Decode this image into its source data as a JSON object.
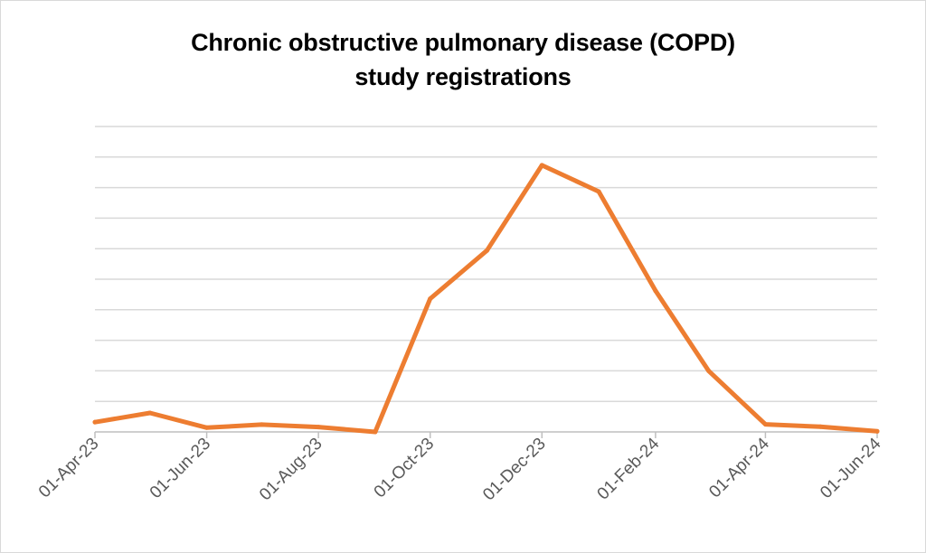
{
  "chart_data": {
    "type": "line",
    "title_lines": [
      "Chronic obstructive pulmonary disease (COPD)",
      "study registrations"
    ],
    "xlabel": "",
    "ylabel": "",
    "x_tick_labels": [
      "01-Apr-23",
      "01-Jun-23",
      "01-Aug-23",
      "01-Oct-23",
      "01-Dec-23",
      "01-Feb-24",
      "01-Apr-24",
      "01-Jun-24"
    ],
    "x": [
      "2023-04-01",
      "2023-05-01",
      "2023-06-01",
      "2023-07-01",
      "2023-08-01",
      "2023-09-01",
      "2023-10-01",
      "2023-11-01",
      "2023-12-01",
      "2024-01-01",
      "2024-02-01",
      "2024-03-01",
      "2024-04-01",
      "2024-05-01",
      "2024-06-01"
    ],
    "series": [
      {
        "values": [
          0.32,
          0.62,
          0.14,
          0.24,
          0.16,
          0.0,
          4.36,
          5.94,
          8.73,
          7.87,
          4.62,
          2.0,
          0.25,
          0.17,
          0.02
        ]
      }
    ],
    "ylim": [
      0,
      10
    ],
    "y_gridlines": 10,
    "y_tick_labels_visible": false,
    "grid": true,
    "legend": "none",
    "colors": {
      "line": "#ed7d31",
      "grid": "#d9d9d9",
      "axis": "#bfbfbf",
      "tick_label": "#595959"
    }
  }
}
